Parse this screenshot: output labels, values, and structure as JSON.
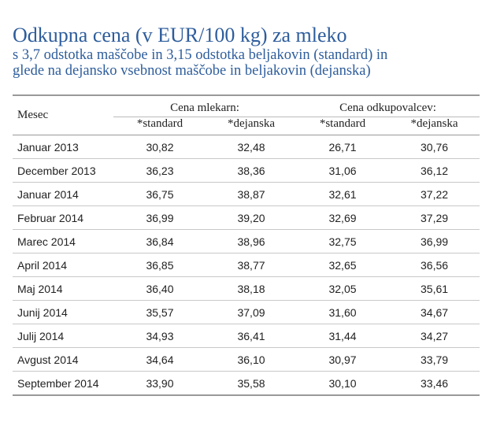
{
  "header": {
    "title": "Odkupna cena (v EUR/100 kg) za mleko",
    "subtitle_line1": "s 3,7 odstotka maščobe in 3,15 odstotka beljakovin (standard) in",
    "subtitle_line2": "glede na dejansko vsebnost maščobe in beljakovin (dejanska)"
  },
  "table": {
    "month_header": "Mesec",
    "group1": "Cena mlekarn:",
    "group2": "Cena odkupovalcev:",
    "sub": [
      "*standard",
      "*dejanska",
      "*standard",
      "*dejanska"
    ],
    "rows": [
      {
        "month": "Januar 2013",
        "v": [
          "30,82",
          "32,48",
          "26,71",
          "30,76"
        ]
      },
      {
        "month": "December 2013",
        "v": [
          "36,23",
          "38,36",
          "31,06",
          "36,12"
        ]
      },
      {
        "month": "Januar 2014",
        "v": [
          "36,75",
          "38,87",
          "32,61",
          "37,22"
        ]
      },
      {
        "month": "Februar 2014",
        "v": [
          "36,99",
          "39,20",
          "32,69",
          "37,29"
        ]
      },
      {
        "month": "Marec 2014",
        "v": [
          "36,84",
          "38,96",
          "32,75",
          "36,99"
        ]
      },
      {
        "month": "April 2014",
        "v": [
          "36,85",
          "38,77",
          "32,65",
          "36,56"
        ]
      },
      {
        "month": "Maj 2014",
        "v": [
          "36,40",
          "38,18",
          "32,05",
          "35,61"
        ]
      },
      {
        "month": "Junij 2014",
        "v": [
          "35,57",
          "37,09",
          "31,60",
          "34,67"
        ]
      },
      {
        "month": "Julij 2014",
        "v": [
          "34,93",
          "36,41",
          "31,44",
          "34,27"
        ]
      },
      {
        "month": "Avgust 2014",
        "v": [
          "34,64",
          "36,10",
          "30,97",
          "33,79"
        ]
      },
      {
        "month": "September 2014",
        "v": [
          "33,90",
          "35,58",
          "30,10",
          "33,46"
        ]
      }
    ]
  }
}
